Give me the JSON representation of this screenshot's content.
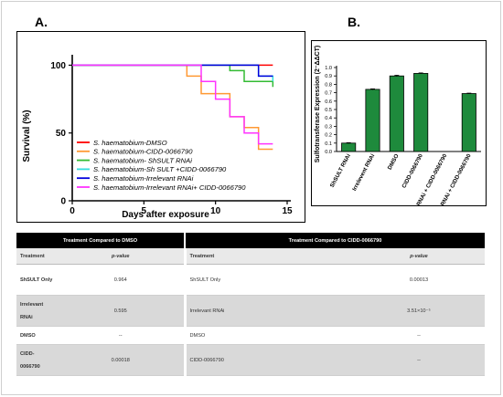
{
  "panels": {
    "a_label": "A.",
    "b_label": "B."
  },
  "chart_data": [
    {
      "type": "line",
      "xlabel": "Days after exposure",
      "ylabel": "Survival (%)",
      "xlim": [
        0,
        15
      ],
      "ylim": [
        0,
        105
      ],
      "xticks": [
        "0",
        "5",
        "10",
        "15"
      ],
      "yticks": [
        "0",
        "50",
        "100"
      ],
      "legend_position": "bottom-left",
      "series": [
        {
          "name": "S. haematobium-DMSO",
          "color": "#ff0000",
          "x": [
            0,
            14
          ],
          "y": [
            100,
            100
          ]
        },
        {
          "name": "S. haematobium-CIDD-0066790",
          "color": "#ff9933",
          "x": [
            0,
            8,
            9,
            11,
            12,
            13,
            14
          ],
          "y": [
            100,
            92,
            79,
            62,
            54,
            38,
            38
          ]
        },
        {
          "name": "S. haematobium- ShSULT RNAi",
          "color": "#33bb33",
          "x": [
            0,
            11,
            12,
            14
          ],
          "y": [
            100,
            96,
            88,
            84
          ]
        },
        {
          "name": "S. haematobium-Sh SULT +CIDD-0066790",
          "color": "#33dddd",
          "x": [
            0,
            13,
            14
          ],
          "y": [
            100,
            92,
            88
          ]
        },
        {
          "name": "S. haematobium-Irrelevant RNAi",
          "color": "#0000dd",
          "x": [
            0,
            13,
            14
          ],
          "y": [
            100,
            92,
            92
          ]
        },
        {
          "name": "S. haematobium-Irrelevant RNAi+ CIDD-0066790",
          "color": "#ff33ff",
          "x": [
            0,
            9,
            10,
            11,
            12,
            13,
            14
          ],
          "y": [
            100,
            88,
            75,
            62,
            50,
            42,
            42
          ]
        }
      ]
    },
    {
      "type": "bar",
      "ylabel": "Sulfotransferase Expression (2⁻ΔΔCT)",
      "ylim": [
        0,
        1.0
      ],
      "yticks": [
        "0.0",
        "0.1",
        "0.2",
        "0.3",
        "0.4",
        "0.5",
        "0.6",
        "0.7",
        "0.8",
        "0.9",
        "1.0"
      ],
      "bar_color": "#1e8a3c",
      "categories": [
        "ShSULT RNAi",
        "Irrelevent RNAi",
        "DMSO",
        "CIDD-0066790",
        "ShSULT RNAi + CIDD-0066790",
        "Irrelevent RNAi + CIDD-0066790"
      ],
      "values": [
        0.1,
        0.74,
        0.9,
        0.93,
        0.0,
        0.69
      ],
      "errors": [
        0.005,
        0.006,
        0.008,
        0.006,
        0.0,
        0.005
      ]
    }
  ],
  "table": {
    "header_left": "Treatment Compared to DMSO",
    "header_right": "Treatment Compared to CIDD-0066790",
    "col_treatment": "Treatment",
    "col_pvalue": "p-value",
    "rows": [
      {
        "left_name": "ShSULT Only",
        "left_p": "0.964",
        "right_name": "ShSULT Only",
        "right_p": "0.00013"
      },
      {
        "left_name": "Irrelevant RNAi",
        "left_p": "0.595",
        "right_name": "Irrelevant RNAi",
        "right_p": "3.51×10⁻⁵"
      },
      {
        "left_name": "DMSO",
        "left_p": "--",
        "right_name": "DMSO",
        "right_p": "--"
      },
      {
        "left_name": "CIDD-0066790",
        "left_p": "0.00018",
        "right_name": "CIDD-0066790",
        "right_p": "--"
      }
    ]
  }
}
